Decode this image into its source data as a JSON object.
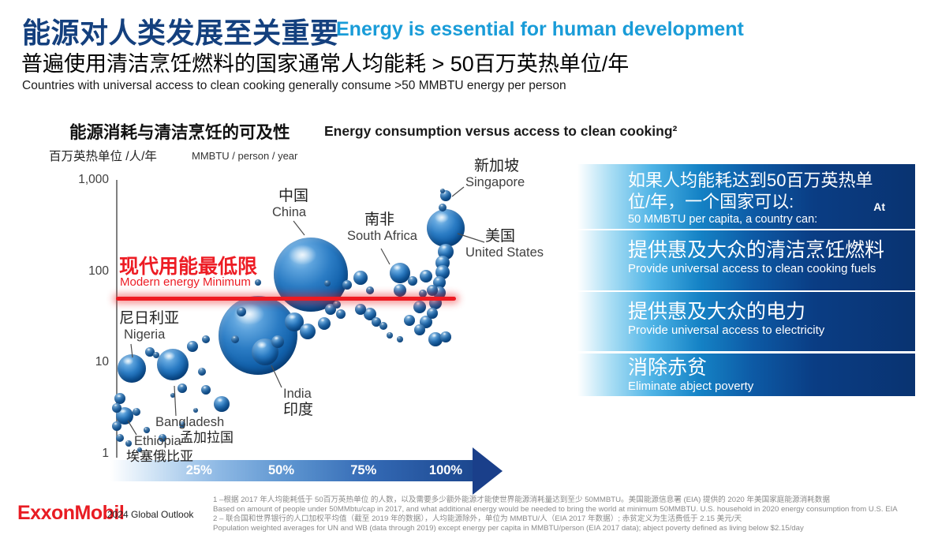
{
  "header": {
    "title_zh": "能源对人类发展至关重要",
    "title_en": "Energy is essential for human development",
    "subtitle_zh": "普遍使用清洁烹饪燃料的国家通常人均能耗 > 50百万英热单位/年",
    "subtitle_en": "Countries with universal access to clean cooking generally consume >50 MMBTU energy per person"
  },
  "chart_data": {
    "type": "scatter",
    "subtype": "bubble",
    "title_zh": "能源消耗与清洁烹饪的可及性",
    "title_en": "Energy  consumption versus access to clean cooking²",
    "y_axis": {
      "unit_zh": "百万英热单位 /人/年",
      "unit_en": "MMBTU / person / year",
      "scale": "log",
      "range": [
        1,
        1000
      ],
      "ticks": [
        {
          "label": "1,000",
          "value": 1000
        },
        {
          "label": "100",
          "value": 100
        },
        {
          "label": "10",
          "value": 10
        },
        {
          "label": "1",
          "value": 1
        }
      ]
    },
    "x_axis": {
      "range": [
        0,
        105
      ],
      "ticks": [
        {
          "label": "25%",
          "value": 25
        },
        {
          "label": "50%",
          "value": 50
        },
        {
          "label": "75%",
          "value": 75
        },
        {
          "label": "100%",
          "value": 100
        }
      ]
    },
    "reference_line": {
      "value": 50,
      "label_zh": "现代用能最低限",
      "label_en": "Modern energy Minimum",
      "color": "#ED1C24"
    },
    "countries": {
      "ethiopia": {
        "zh": "埃塞俄比亚",
        "en": "Ethiopia",
        "access_pct": 2.5,
        "mmbtu": 2.6,
        "r": 11
      },
      "nigeria": {
        "zh": "尼日利亚",
        "en": "Nigeria",
        "access_pct": 4.5,
        "mmbtu": 8.6,
        "r": 18
      },
      "bangladesh": {
        "zh": "孟加拉国",
        "en": "Bangladesh",
        "access_pct": 17,
        "mmbtu": 9.5,
        "r": 20
      },
      "india": {
        "zh": "印度",
        "en": "India",
        "access_pct": 43,
        "mmbtu": 20,
        "r": 50
      },
      "china": {
        "zh": "中国",
        "en": "China",
        "access_pct": 59,
        "mmbtu": 92,
        "r": 47
      },
      "south_africa": {
        "zh": "南非",
        "en": "South Africa",
        "access_pct": 86,
        "mmbtu": 95,
        "r": 13
      },
      "united_states": {
        "zh": "美国",
        "en": "United States",
        "access_pct": 100,
        "mmbtu": 300,
        "r": 24
      },
      "singapore": {
        "zh": "新加坡",
        "en": "Singapore",
        "access_pct": 100,
        "mmbtu": 675,
        "r": 7
      }
    },
    "points": [
      [
        45,
        13,
        17
      ],
      [
        49,
        17,
        8
      ],
      [
        38,
        36,
        6
      ],
      [
        43,
        75,
        4
      ],
      [
        36,
        18,
        5
      ],
      [
        27,
        18,
        5
      ],
      [
        23,
        15,
        7
      ],
      [
        26,
        8,
        5
      ],
      [
        32,
        3.5,
        10
      ],
      [
        27,
        5,
        6
      ],
      [
        20,
        5.2,
        6
      ],
      [
        14,
        1.5,
        5
      ],
      [
        9,
        1.8,
        4
      ],
      [
        6,
        2.9,
        5
      ],
      [
        1,
        4,
        7
      ],
      [
        0,
        3.2,
        6
      ],
      [
        0,
        2,
        6
      ],
      [
        1,
        1.5,
        5
      ],
      [
        3.5,
        1.3,
        4
      ],
      [
        7,
        1.1,
        3
      ],
      [
        10,
        13,
        6
      ],
      [
        12,
        12,
        4
      ],
      [
        54,
        28,
        12
      ],
      [
        58,
        22,
        10
      ],
      [
        63,
        27,
        8
      ],
      [
        65,
        38,
        7
      ],
      [
        68,
        34,
        6
      ],
      [
        67,
        43,
        5
      ],
      [
        64,
        74,
        4
      ],
      [
        70,
        71,
        6
      ],
      [
        74,
        85,
        9
      ],
      [
        77,
        62,
        5
      ],
      [
        74,
        38,
        7
      ],
      [
        77,
        34,
        8
      ],
      [
        79,
        28,
        6
      ],
      [
        81,
        25,
        5
      ],
      [
        83,
        20,
        4
      ],
      [
        86,
        18,
        4
      ],
      [
        86,
        62,
        8
      ],
      [
        90,
        79,
        6
      ],
      [
        93,
        57,
        5
      ],
      [
        94,
        89,
        8
      ],
      [
        96,
        62,
        7
      ],
      [
        100,
        165,
        10
      ],
      [
        99,
        125,
        9
      ],
      [
        99,
        98,
        9
      ],
      [
        98,
        75,
        8
      ],
      [
        98,
        58,
        8
      ],
      [
        97,
        45,
        8
      ],
      [
        96,
        35,
        7
      ],
      [
        94,
        28,
        8
      ],
      [
        92,
        23,
        7
      ],
      [
        97,
        18,
        9
      ],
      [
        100,
        19,
        7
      ],
      [
        89,
        29,
        7
      ],
      [
        92,
        41,
        8
      ],
      [
        99,
        760,
        3
      ],
      [
        99,
        500,
        5
      ],
      [
        20,
        2.1,
        4
      ],
      [
        24,
        3,
        3
      ],
      [
        17,
        4.4,
        3
      ]
    ]
  },
  "panel": {
    "items": [
      {
        "zh": "如果人均能耗达到50百万英热单位/年，一个国家可以:",
        "at": "At",
        "en": "50 MMBTU per capita, a country can:"
      },
      {
        "zh": "提供惠及大众的清洁烹饪燃料",
        "en": "Provide universal access to clean cooking fuels"
      },
      {
        "zh": "提供惠及大众的电力",
        "en": "Provide universal access to electricity"
      },
      {
        "zh": "消除赤贫",
        "en": "Eliminate abject poverty"
      }
    ]
  },
  "footer": {
    "logo": "ExxonMobil",
    "outlook": "2024 Global Outlook",
    "fn1": "1 –根据 2017 年人均能耗低于 50百万英热单位 的人数，以及需要多少额外能源才能使世界能源消耗量达到至少 50MMBTU。美国能源信息署 (EIA) 提供的 2020 年美国家庭能源消耗数据",
    "fn2": "Based on amount of people under 50MMbtu/cap in 2017, and what additional energy would be needed to bring the world at minimum 50MMBTU. U.S. household in 2020 energy consumption from U.S. EIA",
    "fn3": "2 – 联合国和世界银行的人口加权平均值（截至 2019 年的数据），人均能源除外，单位为 MMBTU/人（EIA 2017 年数据）; 赤贫定义为生活费低于 2.15 美元/天",
    "fn4": "Population weighted averages for UN and WB (data through 2019) except energy per capita in MMBTU/person (EIA 2017 data); abject poverty defined as living below $2.15/day"
  }
}
